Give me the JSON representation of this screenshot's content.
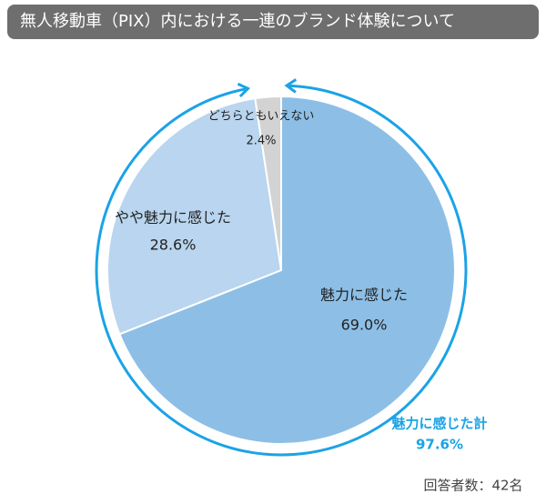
{
  "chart_data": {
    "type": "pie",
    "title": "無人移動車（PIX）内における一連のブランド体験について",
    "categories": [
      "魅力に感じた",
      "やや魅力に感じた",
      "どちらともいえない"
    ],
    "values": [
      69.0,
      28.6,
      2.4
    ],
    "value_labels": [
      "69.0%",
      "28.6%",
      "2.4%"
    ],
    "colors": [
      "#8dbfe6",
      "#b9d5ef",
      "#d3d3d3"
    ],
    "annotation": {
      "text": "魅力に感じた計",
      "value_label": "97.6%",
      "color": "#1aa3e6"
    },
    "footnote": "回答者数：42名"
  }
}
